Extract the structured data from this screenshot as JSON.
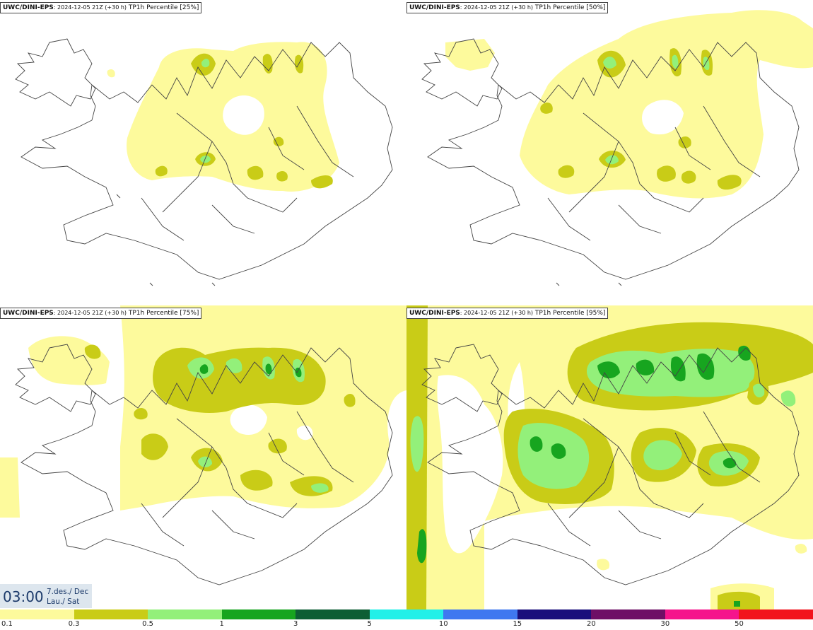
{
  "panels": [
    {
      "model": "UWC/DINI-EPS",
      "run": ": 2024-12-05 21Z (+30 h)",
      "product": " TP1h Percentile [25%]"
    },
    {
      "model": "UWC/DINI-EPS",
      "run": ": 2024-12-05 21Z (+30 h)",
      "product": " TP1h Percentile [50%]"
    },
    {
      "model": "UWC/DINI-EPS",
      "run": ": 2024-12-05 21Z (+30 h)",
      "product": " TP1h Percentile [75%]"
    },
    {
      "model": "UWC/DINI-EPS",
      "run": ": 2024-12-05 21Z (+30 h)",
      "product": " TP1h Percentile [95%]"
    }
  ],
  "valid_time": {
    "time": "03:00",
    "date_line1": "7.des./ Dec",
    "date_line2": "Lau./ Sat"
  },
  "colorbar": {
    "colors": [
      "#fdfa9c",
      "#c9cc17",
      "#93f07a",
      "#17a51f",
      "#0d5e34",
      "#22f0e8",
      "#3f78f0",
      "#1a0f7c",
      "#6e0f66",
      "#f5148c",
      "#f2131c"
    ],
    "ticks": [
      "0.1",
      "0.3",
      "0.5",
      "1",
      "3",
      "5",
      "10",
      "15",
      "20",
      "30",
      "50"
    ]
  },
  "map_colors": {
    "light": "#fdfa9c",
    "mid": "#c9cc17",
    "green": "#93f07a",
    "dark": "#17a51f",
    "coast": "#444444"
  }
}
